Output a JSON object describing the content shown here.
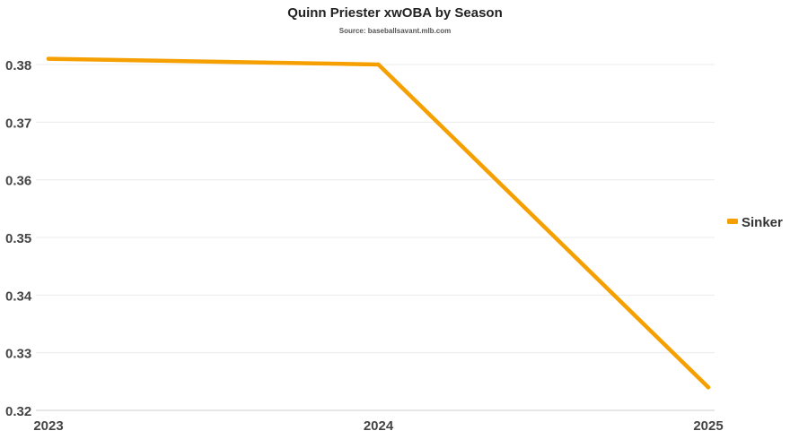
{
  "chart_data": {
    "type": "line",
    "title": "Quinn Priester xwOBA by Season",
    "subtitle": "Source: baseballsavant.mlb.com",
    "xlabel": "",
    "ylabel": "",
    "categories": [
      "2023",
      "2024",
      "2025"
    ],
    "series": [
      {
        "name": "Sinker",
        "color": "#f5a000",
        "values": [
          0.381,
          0.38,
          0.324
        ]
      }
    ],
    "ylim": [
      0.32,
      0.38
    ],
    "yticks": [
      "0.32",
      "0.33",
      "0.34",
      "0.35",
      "0.36",
      "0.37",
      "0.38"
    ],
    "grid": true,
    "legend_position": "right"
  }
}
